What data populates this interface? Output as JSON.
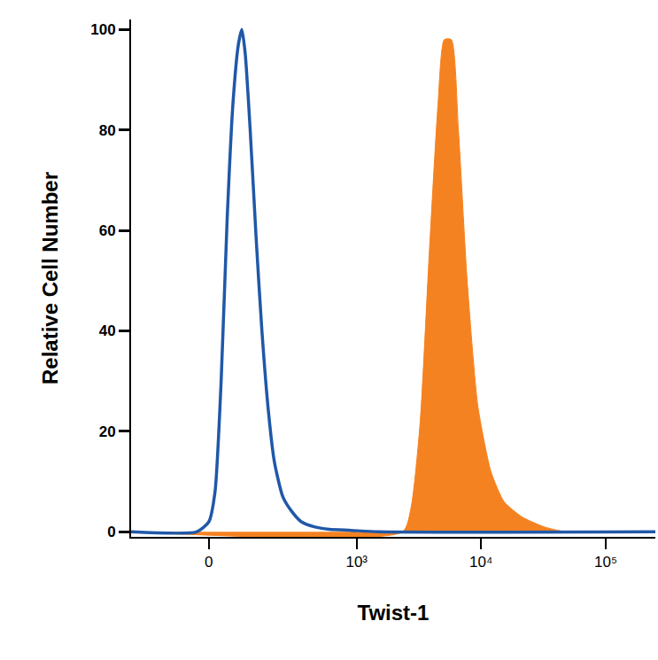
{
  "chart_data": {
    "type": "histogram_overlay",
    "x_label": "Twist-1",
    "y_label": "Relative Cell Number",
    "xlim": [
      -260,
      250000
    ],
    "xticks": [
      0,
      {
        "value": 1000,
        "label": "10³"
      },
      {
        "value": 10000,
        "label": "10⁴"
      },
      {
        "value": 100000,
        "label": "10⁵"
      }
    ],
    "ylim": [
      -1,
      102
    ],
    "yticks": [
      0,
      20,
      40,
      60,
      80,
      100
    ],
    "grid": false,
    "series": [
      {
        "color": "#2058a8",
        "line_style": "outline",
        "x": [
          -260,
          -30,
          0,
          15,
          30,
          45,
          60,
          75,
          85,
          95,
          110,
          130,
          150,
          175,
          200,
          240,
          290,
          350,
          450,
          600,
          900,
          1500,
          250000
        ],
        "values": [
          0,
          0,
          2,
          8,
          30,
          62,
          85,
          97,
          100,
          95,
          80,
          58,
          40,
          24,
          14,
          7,
          4,
          2,
          1,
          0.5,
          0.3,
          0,
          0
        ]
      },
      {
        "color": "#f58220",
        "line_style": "filled",
        "x": [
          -260,
          2345,
          2750,
          3250,
          3830,
          4510,
          5070,
          5770,
          6580,
          7730,
          9430,
          12000,
          15300,
          21200,
          32000,
          48200,
          250000
        ],
        "values": [
          0,
          0,
          5,
          22,
          55,
          85,
          98,
          98,
          80,
          50,
          25,
          12,
          6,
          3,
          1,
          0,
          0
        ]
      }
    ]
  }
}
